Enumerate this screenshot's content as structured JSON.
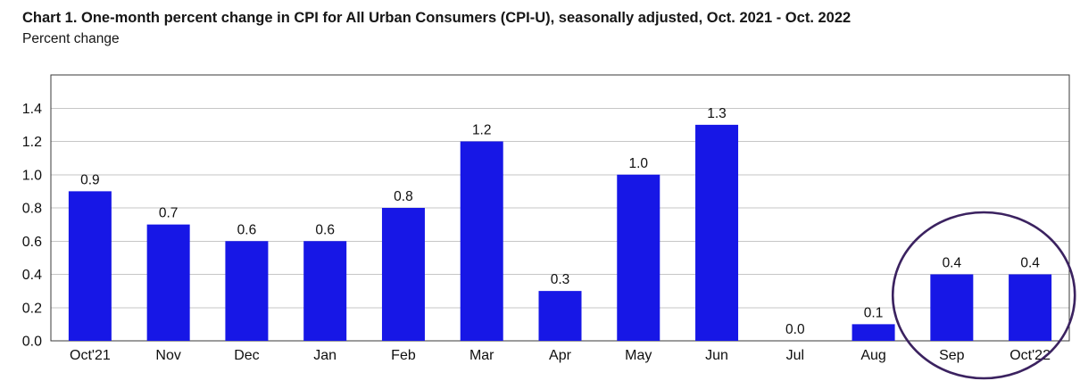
{
  "header": {
    "title": "Chart 1. One-month percent change in CPI for All Urban Consumers (CPI-U), seasonally adjusted, Oct. 2021 - Oct. 2022",
    "subtitle": "Percent change"
  },
  "chart_data": {
    "type": "bar",
    "title": "Chart 1. One-month percent change in CPI for All Urban Consumers (CPI-U), seasonally adjusted, Oct. 2021 - Oct. 2022",
    "ylabel": "Percent change",
    "xlabel": "",
    "categories": [
      "Oct'21",
      "Nov",
      "Dec",
      "Jan",
      "Feb",
      "Mar",
      "Apr",
      "May",
      "Jun",
      "Jul",
      "Aug",
      "Sep",
      "Oct'22"
    ],
    "values": [
      0.9,
      0.7,
      0.6,
      0.6,
      0.8,
      1.2,
      0.3,
      1.0,
      1.3,
      0.0,
      0.1,
      0.4,
      0.4
    ],
    "value_labels": [
      "0.9",
      "0.7",
      "0.6",
      "0.6",
      "0.8",
      "1.2",
      "0.3",
      "1.0",
      "1.3",
      "0.0",
      "0.1",
      "0.4",
      "0.4"
    ],
    "yticks": [
      0.0,
      0.2,
      0.4,
      0.6,
      0.8,
      1.0,
      1.2,
      1.4
    ],
    "ylim": [
      0,
      1.6
    ],
    "grid": true,
    "legend": "none",
    "bar_color": "#1717e6",
    "gridline_color": "#c6c6c6",
    "border_color": "#3a3a3a",
    "annotation": {
      "type": "ellipse",
      "around_categories": [
        "Sep",
        "Oct'22"
      ],
      "color": "#3b2260",
      "meaning": "circle highlighting the last two months"
    }
  }
}
